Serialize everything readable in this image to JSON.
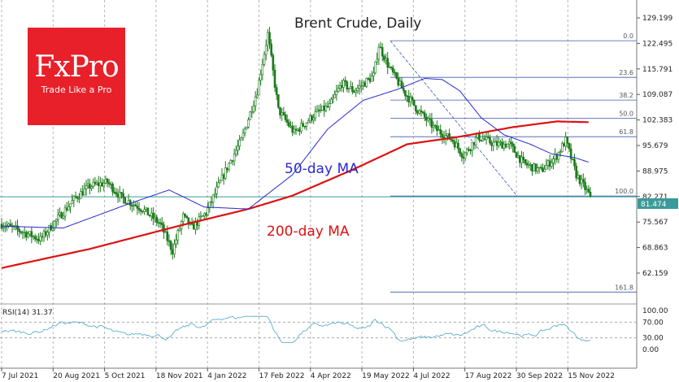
{
  "chart_data": [
    {
      "type": "candlestick",
      "title": "Brent Crude, Daily",
      "instrument": "Brent Crude",
      "timeframe": "Daily",
      "y_ticks": [
        "129.199",
        "122.495",
        "115.791",
        "109.087",
        "102.383",
        "95.679",
        "88.975",
        "82.271",
        "75.567",
        "68.863",
        "62.159"
      ],
      "x_ticks": [
        "7 Jul 2021",
        "20 Aug 2021",
        "5 Oct 2021",
        "18 Nov 2021",
        "4 Jan 2022",
        "17 Feb 2022",
        "4 Apr 2022",
        "19 May 2022",
        "4 Jul 2022",
        "17 Aug 2022",
        "30 Sep 2022",
        "15 Nov 2022"
      ],
      "last_price": "81.474",
      "horizontal_line_price": 82.2,
      "fibonacci": {
        "start_price": 123.2,
        "end_price": 82.4,
        "levels": [
          {
            "label": "0.0",
            "ratio": 0
          },
          {
            "label": "23.6",
            "ratio": 0.236
          },
          {
            "label": "38.2",
            "ratio": 0.382
          },
          {
            "label": "50.0",
            "ratio": 0.5
          },
          {
            "label": "61.8",
            "ratio": 0.618
          },
          {
            "label": "100.0",
            "ratio": 1.0
          },
          {
            "label": "161.8",
            "ratio": 1.618
          }
        ]
      },
      "moving_averages": [
        {
          "name": "50-day MA",
          "color": "#2a2ad0",
          "anchors": [
            [
              0,
              74.5
            ],
            [
              35,
              74.0
            ],
            [
              70,
              80.0
            ],
            [
              95,
              84.0
            ],
            [
              115,
              79.5
            ],
            [
              140,
              79.0
            ],
            [
              165,
              88.0
            ],
            [
              185,
              100.0
            ],
            [
              205,
              107.5
            ],
            [
              225,
              110.5
            ],
            [
              240,
              113.3
            ],
            [
              250,
              113.0
            ],
            [
              260,
              110.0
            ],
            [
              272,
              103.0
            ],
            [
              285,
              98.5
            ],
            [
              300,
              96.0
            ],
            [
              312,
              93.5
            ],
            [
              325,
              92.5
            ],
            [
              333,
              91.3
            ]
          ]
        },
        {
          "name": "200-day MA",
          "color": "#dd1111",
          "anchors": [
            [
              0,
              63.5
            ],
            [
              50,
              68.5
            ],
            [
              100,
              74.5
            ],
            [
              140,
              79.0
            ],
            [
              165,
              82.5
            ],
            [
              200,
              89.5
            ],
            [
              230,
              96.0
            ],
            [
              260,
              98.0
            ],
            [
              290,
              100.5
            ],
            [
              315,
              102.0
            ],
            [
              333,
              101.8
            ]
          ]
        }
      ],
      "price_path": [
        [
          0,
          75
        ],
        [
          12,
          73
        ],
        [
          22,
          71
        ],
        [
          30,
          75.5
        ],
        [
          42,
          82
        ],
        [
          50,
          85
        ],
        [
          60,
          86
        ],
        [
          68,
          82
        ],
        [
          80,
          79
        ],
        [
          90,
          75
        ],
        [
          97,
          68
        ],
        [
          103,
          77
        ],
        [
          108,
          74
        ],
        [
          116,
          78
        ],
        [
          128,
          90
        ],
        [
          136,
          97
        ],
        [
          145,
          110
        ],
        [
          151,
          125
        ],
        [
          157,
          105
        ],
        [
          166,
          99
        ],
        [
          178,
          104
        ],
        [
          186,
          106
        ],
        [
          193,
          112
        ],
        [
          200,
          110
        ],
        [
          211,
          114
        ],
        [
          214,
          122
        ],
        [
          220,
          116
        ],
        [
          228,
          110
        ],
        [
          236,
          105
        ],
        [
          246,
          100
        ],
        [
          256,
          97
        ],
        [
          262,
          93
        ],
        [
          270,
          98
        ],
        [
          280,
          96
        ],
        [
          288,
          96
        ],
        [
          296,
          91
        ],
        [
          306,
          89
        ],
        [
          315,
          93
        ],
        [
          320,
          97
        ],
        [
          326,
          88
        ],
        [
          333,
          83
        ],
        [
          334,
          81.5
        ]
      ]
    },
    {
      "type": "line",
      "title": "RSI(14) 31.37",
      "indicator": "RSI(14)",
      "value": "31.37",
      "y_ticks": [
        "100.00",
        "70.00",
        "30.00",
        "0.00"
      ],
      "levels": [
        70,
        30
      ]
    }
  ],
  "annotations": {
    "ma50_label": "50-day MA",
    "ma200_label": "200-day MA"
  },
  "branding": {
    "logo_text": "FxPro",
    "tagline": "Trade Like a Pro"
  },
  "colors": {
    "ma50": "#2a2ad0",
    "ma200": "#dd1111",
    "candles": "#1a7a1a",
    "fib": "#3c5aa8",
    "brand": "#e8202a",
    "price_line": "#3a9a9a"
  }
}
